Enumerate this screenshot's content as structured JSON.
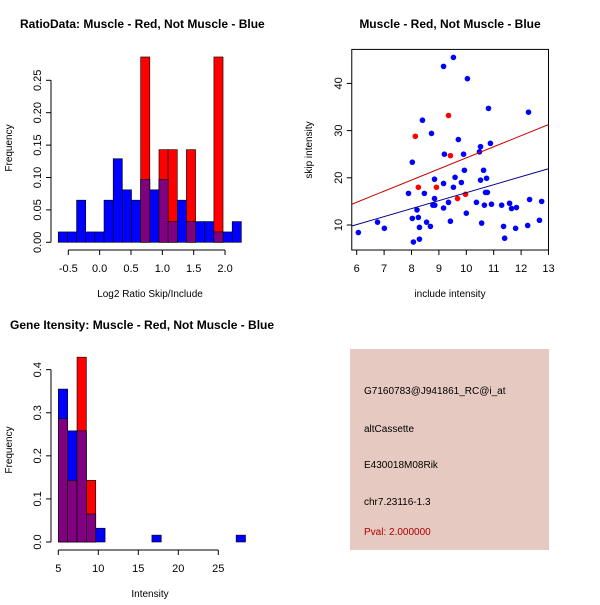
{
  "chart_data": [
    {
      "type": "bar",
      "title": "RatioData: Muscle - Red, Not Muscle - Blue",
      "xlabel": "Log2 Ratio Skip/Include",
      "ylabel": "Frequency",
      "bin_start": -0.66,
      "bin_width": 0.146,
      "xticks": [
        -0.5,
        0.0,
        0.5,
        1.0,
        1.5,
        2.0
      ],
      "xtick_labels": [
        "-0.5",
        "0.0",
        "0.5",
        "1.0",
        "1.5",
        "2.0"
      ],
      "yticks": [
        0,
        0.05,
        0.1,
        0.15,
        0.2,
        0.25
      ],
      "ytick_labels": [
        "0.00",
        "0.05",
        "0.10",
        "0.15",
        "0.20",
        "0.25"
      ],
      "series": [
        {
          "name": "Not Muscle",
          "color": "#0000ff",
          "values": [
            0.016,
            0.016,
            0.065,
            0.016,
            0.016,
            0.065,
            0.129,
            0.081,
            0.065,
            0.097,
            0.081,
            0.097,
            0.032,
            0.065,
            0.032,
            0.032,
            0.032,
            0.016,
            0.016,
            0.032
          ]
        },
        {
          "name": "Muscle",
          "color": "#ff0000",
          "values": [
            0,
            0,
            0,
            0,
            0,
            0,
            0,
            0,
            0,
            0.286,
            0,
            0.143,
            0.143,
            0,
            0.143,
            0,
            0,
            0.286,
            0,
            0
          ]
        }
      ],
      "overlap_color": "#800080"
    },
    {
      "type": "scatter",
      "title": "Muscle - Red, Not Muscle - Blue",
      "xlabel": "include intensity",
      "ylabel": "skip intensity",
      "xlim": [
        5.82,
        13
      ],
      "ylim": [
        4.7,
        47.2
      ],
      "xticks": [
        6,
        7,
        8,
        9,
        10,
        11,
        12,
        13
      ],
      "yticks": [
        10,
        20,
        30,
        40
      ],
      "series": [
        {
          "name": "Not Muscle",
          "color": "#0000ff",
          "x": [
            6.06,
            6.76,
            7.01,
            7.89,
            8.03,
            8.03,
            8.07,
            8.2,
            8.25,
            8.29,
            8.29,
            8.4,
            8.47,
            8.55,
            8.69,
            8.73,
            8.78,
            8.84,
            8.84,
            8.85,
            9.17,
            9.17,
            9.17,
            9.2,
            9.35,
            9.42,
            9.53,
            9.53,
            9.59,
            9.71,
            9.82,
            9.9,
            9.93,
            10.0,
            10.04,
            10.37,
            10.48,
            10.52,
            10.52,
            10.56,
            10.63,
            10.66,
            10.7,
            10.74,
            10.77,
            10.81,
            10.88,
            10.92,
            11.29,
            11.36,
            11.4,
            11.58,
            11.65,
            11.8,
            11.83,
            12.24,
            12.27,
            12.31,
            12.67,
            12.75
          ],
          "y": [
            8.4,
            10.6,
            9.3,
            16.7,
            23.3,
            11.4,
            6.4,
            13.2,
            11.6,
            9.5,
            7.0,
            32.2,
            16.7,
            10.6,
            9.7,
            29.4,
            14.2,
            19.7,
            15.6,
            14.2,
            43.6,
            18.8,
            13.6,
            25.0,
            14.8,
            10.8,
            45.5,
            18.0,
            20.1,
            28.1,
            19.0,
            25.0,
            21.6,
            12.5,
            41.0,
            14.8,
            25.5,
            26.6,
            19.5,
            10.4,
            21.6,
            14.2,
            16.9,
            19.9,
            16.9,
            34.7,
            27.3,
            14.4,
            14.2,
            9.7,
            7.2,
            14.6,
            13.5,
            9.3,
            13.7,
            9.9,
            33.9,
            15.4,
            11.0,
            15.0
          ],
          "fit": {
            "intercept": -0.05,
            "slope": 1.69
          }
        },
        {
          "name": "Muscle",
          "color": "#ff0000",
          "x": [
            8.14,
            8.25,
            8.91,
            9.35,
            9.42,
            9.68,
            9.97
          ],
          "y": [
            28.8,
            18.0,
            18.0,
            33.2,
            24.7,
            15.6,
            16.5
          ],
          "fit": {
            "intercept": 0.72,
            "slope": 2.35
          }
        }
      ]
    },
    {
      "type": "bar",
      "title": "Gene Itensity: Muscle - Red, Not Muscle - Blue",
      "xlabel": "Intensity",
      "ylabel": "Frequency",
      "bin_start": 5.0,
      "bin_width": 1.17,
      "xticks": [
        5,
        10,
        15,
        20,
        25
      ],
      "xtick_labels": [
        "5",
        "10",
        "15",
        "20",
        "25"
      ],
      "yticks": [
        0,
        0.1,
        0.2,
        0.3,
        0.4
      ],
      "ytick_labels": [
        "0.0",
        "0.1",
        "0.2",
        "0.3",
        "0.4"
      ],
      "series": [
        {
          "name": "Not Muscle",
          "color": "#0000ff",
          "values": [
            0.355,
            0.258,
            0.258,
            0.065,
            0.032,
            0,
            0,
            0,
            0,
            0,
            0.016,
            0,
            0,
            0,
            0,
            0,
            0,
            0,
            0,
            0.016
          ]
        },
        {
          "name": "Muscle",
          "color": "#ff0000",
          "values": [
            0.286,
            0.143,
            0.429,
            0.143,
            0,
            0,
            0,
            0,
            0,
            0,
            0,
            0,
            0,
            0,
            0,
            0,
            0,
            0,
            0,
            0
          ]
        }
      ],
      "overlap_color": "#800080"
    }
  ],
  "info": {
    "probe": "G7160783@J941861_RC@i_at",
    "event_type": "altCassette",
    "gene": "E430018M08Rik",
    "location": "chr7.23116-1.3",
    "pval": "Pval: 2.000000",
    "pval_color": "#b00000",
    "background": "#e6c9c0"
  }
}
